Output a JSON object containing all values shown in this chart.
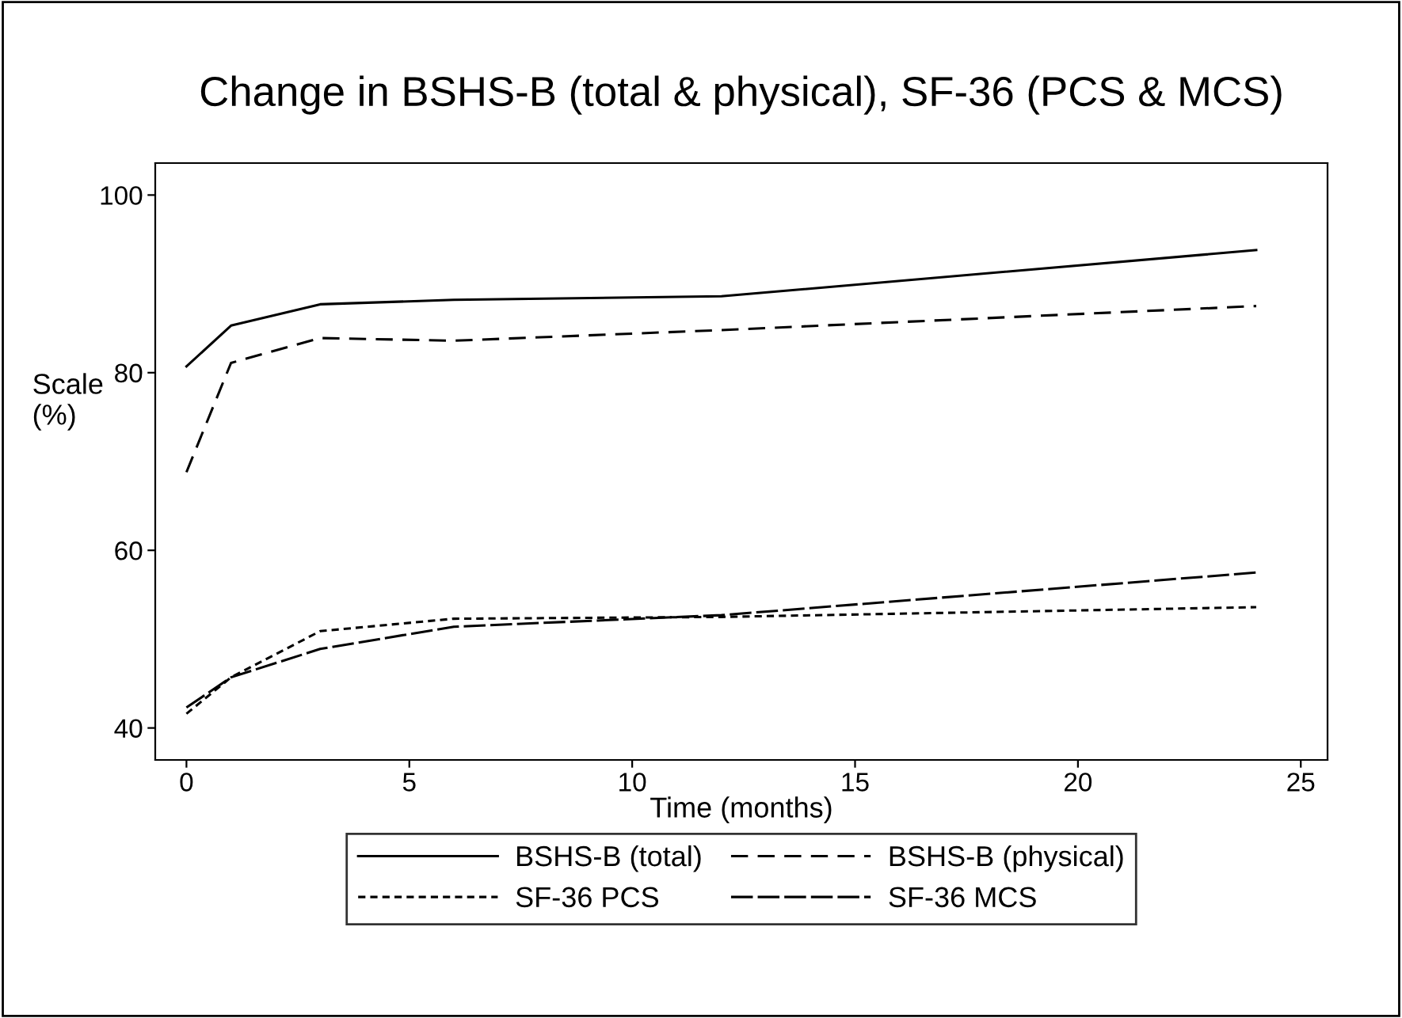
{
  "chart_data": {
    "type": "line",
    "title": "Change in BSHS-B (total & physical), SF-36 (PCS & MCS)",
    "xlabel": "Time (months)",
    "ylabel": "Scale\n(%)",
    "x": [
      0,
      1,
      3,
      6,
      12,
      24
    ],
    "series": [
      {
        "name": "BSHS-B (total)",
        "color": "#000000",
        "line_style": "solid",
        "values": [
          80.7,
          85.3,
          87.7,
          88.2,
          88.6,
          93.8
        ]
      },
      {
        "name": "BSHS-B (physical)",
        "color": "#000000",
        "line_style": "dashed",
        "values": [
          68.8,
          81.1,
          83.9,
          83.6,
          84.8,
          87.5
        ]
      },
      {
        "name": "SF-36 PCS",
        "color": "#000000",
        "line_style": "dotted",
        "values": [
          41.6,
          45.7,
          50.9,
          52.3,
          52.5,
          53.6
        ]
      },
      {
        "name": "SF-36 MCS",
        "color": "#000000",
        "line_style": "long dashed",
        "values": [
          42.3,
          45.7,
          48.9,
          51.4,
          52.7,
          57.5
        ]
      }
    ],
    "xlim": [
      -0.7,
      25.6
    ],
    "ylim": [
      36.4,
      103.6
    ],
    "xticks": [
      0,
      5,
      10,
      15,
      20,
      25
    ],
    "yticks": [
      40,
      60,
      80,
      100
    ],
    "grid": false,
    "legend": "bottom",
    "marker": "none"
  }
}
